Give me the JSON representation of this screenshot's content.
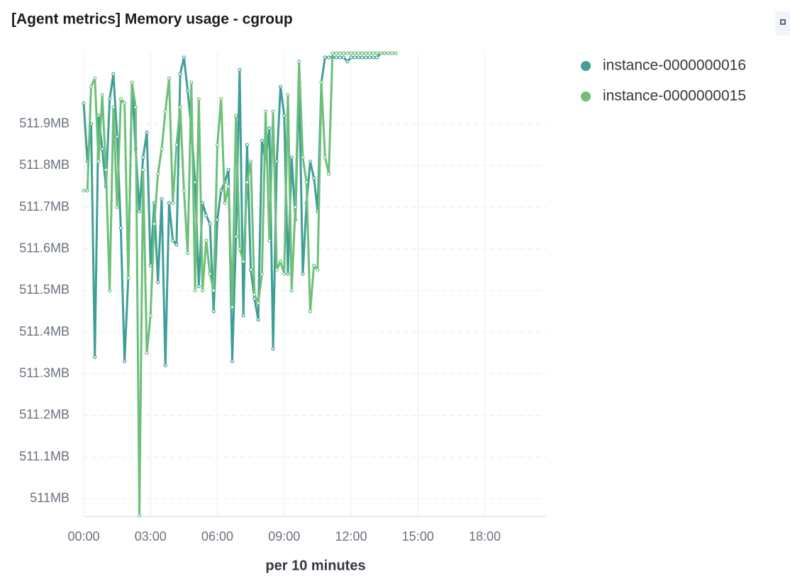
{
  "chart_data": {
    "type": "line",
    "title": "[Agent metrics] Memory usage - cgroup",
    "x_label": "per 10 minutes",
    "x": [
      0,
      10,
      20,
      30,
      40,
      50,
      60,
      70,
      80,
      90,
      100,
      110,
      120,
      130,
      140,
      150,
      160,
      170,
      180,
      190,
      200,
      210,
      220,
      230,
      240,
      250,
      260,
      270,
      280,
      290,
      300,
      310,
      320,
      330,
      340,
      350,
      360,
      370,
      380,
      390,
      400,
      410,
      420,
      430,
      440,
      450,
      460,
      470,
      480,
      490,
      500,
      510,
      520,
      530,
      540,
      550,
      560,
      570,
      580,
      590,
      600,
      610,
      620,
      630,
      640,
      650,
      660,
      670,
      680,
      690,
      700,
      710,
      720,
      730,
      740,
      750,
      760,
      770,
      780,
      790,
      800,
      810,
      820,
      830,
      840
    ],
    "xlim": [
      0,
      1245
    ],
    "xticks": [
      {
        "value": 0,
        "label": "00:00"
      },
      {
        "value": 180,
        "label": "03:00"
      },
      {
        "value": 360,
        "label": "06:00"
      },
      {
        "value": 540,
        "label": "09:00"
      },
      {
        "value": 720,
        "label": "12:00"
      },
      {
        "value": 900,
        "label": "15:00"
      },
      {
        "value": 1080,
        "label": "18:00"
      }
    ],
    "ylim": [
      510.957,
      512.07
    ],
    "yticks": [
      {
        "value": 511,
        "label": "511MB"
      },
      {
        "value": 511.1,
        "label": "511.1MB"
      },
      {
        "value": 511.2,
        "label": "511.2MB"
      },
      {
        "value": 511.3,
        "label": "511.3MB"
      },
      {
        "value": 511.4,
        "label": "511.4MB"
      },
      {
        "value": 511.5,
        "label": "511.5MB"
      },
      {
        "value": 511.6,
        "label": "511.6MB"
      },
      {
        "value": 511.7,
        "label": "511.7MB"
      },
      {
        "value": 511.8,
        "label": "511.8MB"
      },
      {
        "value": 511.9,
        "label": "511.9MB"
      }
    ],
    "grid": true,
    "legend": "right",
    "series": [
      {
        "name": "instance-0000000016",
        "color": "#3f9f97",
        "values": [
          511.95,
          511.81,
          511.9,
          511.34,
          511.92,
          511.84,
          511.75,
          511.96,
          512.02,
          511.87,
          511.65,
          511.33,
          511.53,
          512.0,
          511.84,
          511.69,
          511.82,
          511.88,
          511.56,
          511.71,
          511.52,
          511.72,
          511.32,
          511.71,
          511.62,
          511.61,
          512.02,
          512.06,
          511.98,
          511.89,
          511.76,
          511.51,
          511.71,
          511.68,
          511.66,
          511.45,
          511.67,
          511.74,
          511.76,
          511.79,
          511.33,
          511.63,
          512.03,
          511.44,
          511.85,
          511.55,
          511.48,
          511.43,
          511.86,
          511.81,
          511.89,
          511.36,
          511.81,
          511.99,
          511.92,
          511.54,
          511.82,
          511.67,
          512.0,
          511.54,
          511.71,
          511.81,
          511.77,
          511.69,
          512.0,
          512.06,
          512.06,
          512.06,
          512.06,
          512.06,
          512.06,
          512.05,
          512.06,
          512.06,
          512.06,
          512.06,
          512.06,
          512.06,
          512.06,
          512.06,
          512.07,
          512.07,
          512.07,
          512.07,
          512.07
        ]
      },
      {
        "name": "instance-0000000015",
        "color": "#6dbf7a",
        "values": [
          511.74,
          511.74,
          511.99,
          512.01,
          511.81,
          511.97,
          511.79,
          511.5,
          511.94,
          511.7,
          511.96,
          511.95,
          511.53,
          512.0,
          511.94,
          510.96,
          511.79,
          511.35,
          511.44,
          511.66,
          511.78,
          511.84,
          511.93,
          512.01,
          511.71,
          511.85,
          511.94,
          511.74,
          511.59,
          512.0,
          511.5,
          511.96,
          511.5,
          511.62,
          511.54,
          511.5,
          511.85,
          511.96,
          511.71,
          511.75,
          511.46,
          511.92,
          511.6,
          511.57,
          511.76,
          511.81,
          511.49,
          511.47,
          511.54,
          511.93,
          511.62,
          511.93,
          511.55,
          511.57,
          511.54,
          511.97,
          511.5,
          511.7,
          512.05,
          511.82,
          511.76,
          511.45,
          511.56,
          511.55,
          512.0,
          511.82,
          511.78,
          512.07,
          512.07,
          512.07,
          512.07,
          512.07,
          512.07,
          512.07,
          512.07,
          512.07,
          512.07,
          512.07,
          512.07,
          512.07,
          512.07,
          512.07,
          512.07,
          512.07,
          512.07
        ]
      }
    ]
  }
}
